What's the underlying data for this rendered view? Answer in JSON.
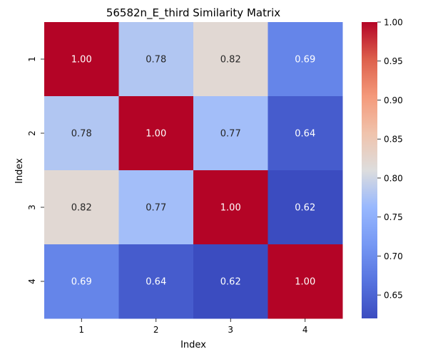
{
  "chart_data": {
    "type": "heatmap",
    "title": "56582n_E_third Similarity Matrix",
    "xlabel": "Index",
    "ylabel": "Index",
    "x_categories": [
      "1",
      "2",
      "3",
      "4"
    ],
    "y_categories": [
      "1",
      "2",
      "3",
      "4"
    ],
    "values": [
      [
        1.0,
        0.78,
        0.82,
        0.69
      ],
      [
        0.78,
        1.0,
        0.77,
        0.64
      ],
      [
        0.82,
        0.77,
        1.0,
        0.62
      ],
      [
        0.69,
        0.64,
        0.62,
        1.0
      ]
    ],
    "cell_labels": [
      [
        "1.00",
        "0.78",
        "0.82",
        "0.69"
      ],
      [
        "0.78",
        "1.00",
        "0.77",
        "0.64"
      ],
      [
        "0.82",
        "0.77",
        "1.00",
        "0.62"
      ],
      [
        "0.69",
        "0.64",
        "0.62",
        "1.00"
      ]
    ],
    "colormap": "coolwarm",
    "vmin": 0.62,
    "vmax": 1.0,
    "colorbar_ticks": [
      "0.65",
      "0.70",
      "0.75",
      "0.80",
      "0.85",
      "0.90",
      "0.95",
      "1.00"
    ],
    "colorbar_placement": "right"
  }
}
